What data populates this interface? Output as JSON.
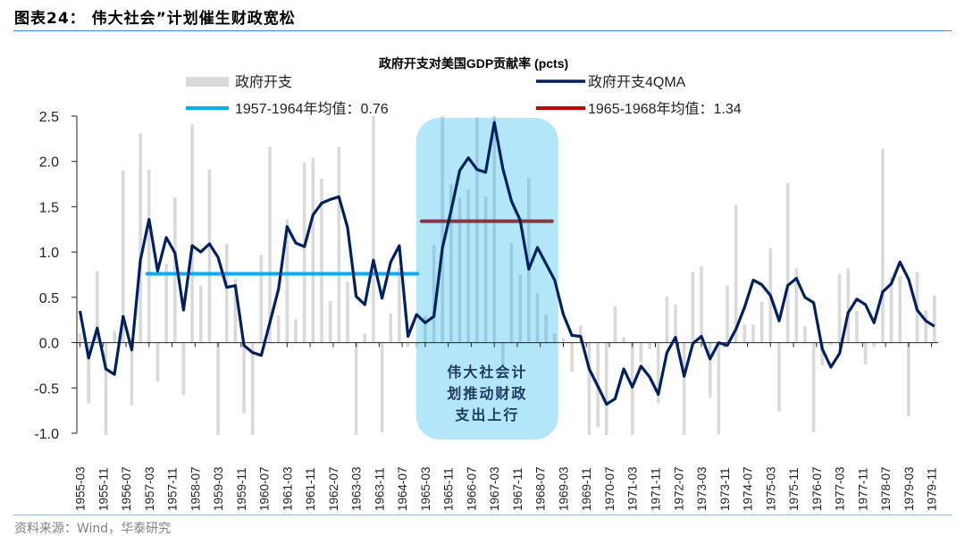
{
  "header": {
    "title": "图表24： 伟大社会”计划催生财政宽松"
  },
  "source": "资料来源：Wind，华泰研究",
  "chart_data": {
    "type": "bar+line",
    "title": "政府开支对美国GDP贡献率 (pcts)",
    "frequency": "quarterly",
    "x_start": "1955-03",
    "x_end": "1979-12",
    "xtick_labels": [
      "1955-03",
      "1955-11",
      "1956-07",
      "1957-03",
      "1957-11",
      "1958-07",
      "1959-03",
      "1959-11",
      "1960-07",
      "1961-03",
      "1961-11",
      "1962-07",
      "1963-03",
      "1963-11",
      "1964-07",
      "1965-03",
      "1965-11",
      "1966-07",
      "1967-03",
      "1967-11",
      "1968-07",
      "1969-03",
      "1969-11",
      "1970-07",
      "1971-03",
      "1971-11",
      "1972-07",
      "1973-03",
      "1973-11",
      "1974-07",
      "1975-03",
      "1975-11",
      "1976-07",
      "1977-03",
      "1977-11",
      "1978-07",
      "1979-03",
      "1979-11"
    ],
    "ylim": [
      -1.0,
      2.5
    ],
    "yticks": [
      "2.5",
      "2.0",
      "1.5",
      "1.0",
      "0.5",
      "0.0",
      "-0.5",
      "-1.0"
    ],
    "legend": {
      "placement": "top",
      "entries": [
        "政府开支",
        "政府开支4QMA",
        "1957-1964年均值：0.76",
        "1965-1968年均值：1.34"
      ]
    },
    "series": [
      {
        "name": "政府开支",
        "type": "bar",
        "color": "#d9d9d9",
        "values": [
          0.1,
          -0.67,
          0.79,
          -1.02,
          0.13,
          1.9,
          -0.69,
          2.31,
          1.91,
          -0.43,
          0.87,
          1.6,
          -0.58,
          2.41,
          0.63,
          1.91,
          -1.02,
          1.09,
          0.71,
          -0.78,
          -1.02,
          0.97,
          2.16,
          0.3,
          1.36,
          0.26,
          1.99,
          2.04,
          1.81,
          0.46,
          2.16,
          0.67,
          -1.02,
          0.1,
          2.5,
          -0.99,
          0.32,
          0.82,
          -0.05,
          -0.05,
          0.3,
          1.08,
          2.5,
          1.75,
          1.6,
          1.69,
          2.49,
          1.61,
          2.5,
          -0.25,
          1.1,
          0.75,
          1.82,
          0.55,
          0.31,
          0.1,
          0.05,
          -0.32,
          0.19,
          -1.02,
          -0.93,
          -1.02,
          0.4,
          0.06,
          -1.02,
          -0.22,
          -0.07,
          -0.67,
          0.51,
          0.42,
          -1.02,
          0.78,
          0.84,
          -0.61,
          -1.01,
          0.63,
          1.52,
          0.2,
          0.2,
          0.45,
          1.04,
          -0.76,
          1.76,
          0.82,
          0.18,
          -0.99,
          -0.25,
          -0.03,
          0.76,
          0.82,
          0.35,
          -0.24,
          -0.05,
          2.14,
          0.73,
          0.73,
          -0.81,
          0.78,
          0.36,
          0.52
        ]
      },
      {
        "name": "政府开支4QMA",
        "type": "line",
        "color": "#002060",
        "values": [
          0.35,
          -0.17,
          0.16,
          -0.29,
          -0.35,
          0.29,
          -0.08,
          0.91,
          1.36,
          0.79,
          1.16,
          0.99,
          0.36,
          1.07,
          1.0,
          1.09,
          0.94,
          0.61,
          0.63,
          -0.03,
          -0.11,
          -0.14,
          0.22,
          0.59,
          1.28,
          1.1,
          1.06,
          1.41,
          1.54,
          1.58,
          1.61,
          1.27,
          0.51,
          0.42,
          0.91,
          0.49,
          0.89,
          1.07,
          0.07,
          0.31,
          0.22,
          0.29,
          1.05,
          1.46,
          1.9,
          2.04,
          1.91,
          1.88,
          2.43,
          1.92,
          1.56,
          1.35,
          0.81,
          1.05,
          0.87,
          0.69,
          0.31,
          0.08,
          0.07,
          -0.29,
          -0.48,
          -0.68,
          -0.62,
          -0.29,
          -0.49,
          -0.26,
          -0.38,
          -0.57,
          -0.11,
          0.06,
          -0.37,
          -0.01,
          0.07,
          -0.18,
          0.0,
          -0.03,
          0.15,
          0.39,
          0.69,
          0.64,
          0.52,
          0.24,
          0.63,
          0.71,
          0.5,
          0.44,
          -0.07,
          -0.27,
          -0.12,
          0.33,
          0.48,
          0.42,
          0.22,
          0.56,
          0.65,
          0.89,
          0.7,
          0.36,
          0.24,
          0.18
        ]
      },
      {
        "name": "1957-1964年均值：0.76",
        "type": "hline",
        "color": "#00b0f0",
        "value": 0.76,
        "from": "1957-03",
        "to": "1964-12"
      },
      {
        "name": "1965-1968年均值：1.34",
        "type": "hline",
        "color": "#c00000",
        "value": 1.34,
        "from": "1965-03",
        "to": "1968-12"
      }
    ],
    "annotation": {
      "text_lines": [
        "伟大社会计",
        "划推动财政",
        "支出上行"
      ],
      "from": "1965-03",
      "to": "1968-12",
      "color": "#00b0f0",
      "text_color": "#1f3864"
    }
  }
}
